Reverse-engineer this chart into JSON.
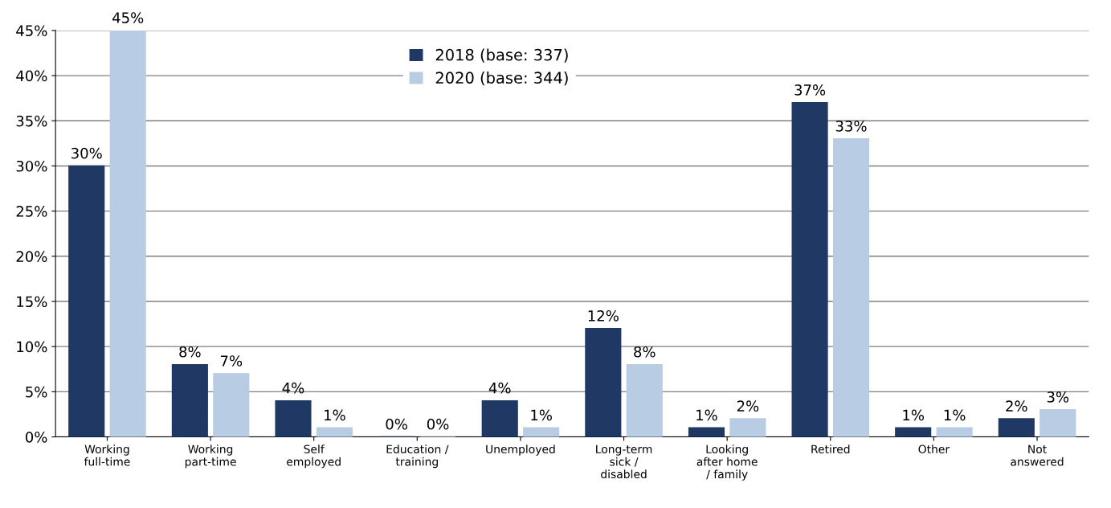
{
  "chart_data": {
    "type": "bar",
    "categories": [
      "Working\nfull-time",
      "Working\npart-time",
      "Self\nemployed",
      "Education /\ntraining",
      "Unemployed",
      "Long-term\nsick /\ndisabled",
      "Looking\nafter home\n/ family",
      "Retired",
      "Other",
      "Not\nanswered"
    ],
    "series": [
      {
        "name": "2018 (base: 337)",
        "color": "#1f3864",
        "values": [
          30,
          8,
          4,
          0,
          4,
          12,
          1,
          37,
          1,
          2
        ],
        "value_labels": [
          "30%",
          "8%",
          "4%",
          "0%",
          "4%",
          "12%",
          "1%",
          "37%",
          "1%",
          "2%"
        ]
      },
      {
        "name": "2020 (base: 344)",
        "color": "#b8cce4",
        "values": [
          45,
          7,
          1,
          0,
          1,
          8,
          2,
          33,
          1,
          3
        ],
        "value_labels": [
          "45%",
          "7%",
          "1%",
          "0%",
          "1%",
          "8%",
          "2%",
          "33%",
          "1%",
          "3%"
        ]
      }
    ],
    "ylim": [
      0,
      45
    ],
    "yticks": [
      {
        "value": 0,
        "label": "0%"
      },
      {
        "value": 5,
        "label": "5%"
      },
      {
        "value": 10,
        "label": "10%"
      },
      {
        "value": 15,
        "label": "15%"
      },
      {
        "value": 20,
        "label": "20%"
      },
      {
        "value": 25,
        "label": "25%"
      },
      {
        "value": 30,
        "label": "30%"
      },
      {
        "value": 35,
        "label": "35%"
      },
      {
        "value": 40,
        "label": "40%"
      },
      {
        "value": 45,
        "label": "45%"
      }
    ],
    "grid": "y",
    "legend": "top"
  }
}
